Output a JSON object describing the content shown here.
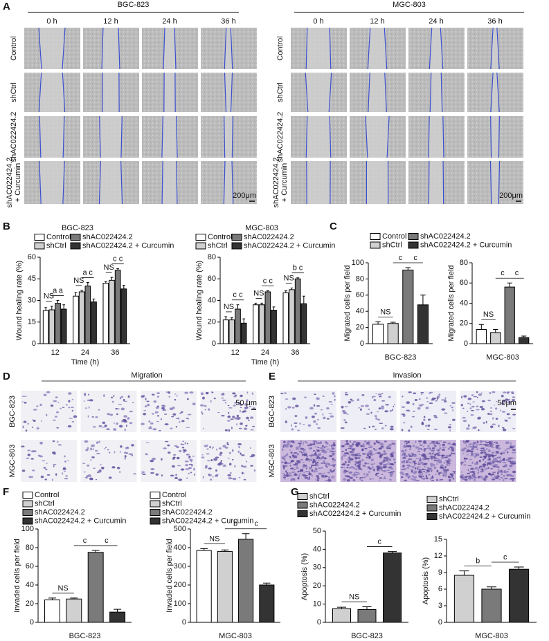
{
  "panel_labels": [
    "A",
    "B",
    "C",
    "D",
    "E",
    "F",
    "G"
  ],
  "wound_assay": {
    "groups": [
      "BGC-823",
      "MGC-803"
    ],
    "times": [
      "0 h",
      "12 h",
      "24 h",
      "36 h"
    ],
    "conditions": [
      [
        "Control"
      ],
      [
        "shCtrl"
      ],
      [
        "shAC022424.2"
      ],
      [
        "shAC022424.2",
        "+ Curcumin"
      ]
    ],
    "scale_bar": "200μm"
  },
  "transwell": {
    "titles": [
      "Migration",
      "Invasion"
    ],
    "cell_lines": [
      "BGC-823",
      "MGC-803"
    ],
    "scale_bars": [
      "50 μm",
      "50μm"
    ]
  },
  "chart_data": [
    {
      "type": "bar",
      "title": "BGC-823",
      "categories": [
        "12",
        "24",
        "36"
      ],
      "xlabel": "Time (h)",
      "ylabel": "Wound healing rate (%)",
      "ylim": [
        0,
        60
      ],
      "yticks": [
        0,
        15,
        30,
        45,
        60
      ],
      "legend_columns": 2,
      "series": [
        {
          "name": "Control",
          "color": "#ffffff",
          "values": [
            23,
            33,
            42
          ],
          "errors": [
            2,
            2.5,
            1
          ]
        },
        {
          "name": "shCtrl",
          "color": "#d0d0d0",
          "values": [
            23.5,
            36,
            44
          ],
          "errors": [
            2.5,
            1,
            2
          ]
        },
        {
          "name": "shAC022424.2",
          "color": "#7a7a7a",
          "values": [
            28,
            40,
            51
          ],
          "errors": [
            2,
            2.5,
            1
          ]
        },
        {
          "name": "shAC022424.2 + Curcumin",
          "color": "#333333",
          "values": [
            24,
            29,
            38
          ],
          "errors": [
            3,
            2,
            2.5
          ]
        }
      ],
      "annotations": [
        [
          "NS",
          "a",
          "a"
        ],
        [
          "NS",
          "a",
          "c"
        ],
        [
          "NS",
          "c",
          "c"
        ]
      ]
    },
    {
      "type": "bar",
      "title": "MGC-803",
      "categories": [
        "12",
        "24",
        "36"
      ],
      "xlabel": "Time (h)",
      "ylabel": "Wound healing rate (%)",
      "ylim": [
        0,
        80
      ],
      "yticks": [
        0,
        20,
        40,
        60,
        80
      ],
      "legend_columns": 2,
      "series": [
        {
          "name": "Control",
          "color": "#ffffff",
          "values": [
            22,
            36,
            47
          ],
          "errors": [
            3,
            1.5,
            2
          ]
        },
        {
          "name": "shCtrl",
          "color": "#d0d0d0",
          "values": [
            22,
            36,
            50
          ],
          "errors": [
            2,
            1.5,
            1.5
          ]
        },
        {
          "name": "shAC022424.2",
          "color": "#7a7a7a",
          "values": [
            32,
            48,
            60
          ],
          "errors": [
            4,
            1,
            1
          ]
        },
        {
          "name": "shAC022424.2 + Curcumin",
          "color": "#333333",
          "values": [
            19,
            31,
            37
          ],
          "errors": [
            4,
            3,
            7
          ]
        }
      ],
      "annotations": [
        [
          "NS",
          "c",
          "c"
        ],
        [
          "NS",
          "c",
          "c"
        ],
        [
          "NS",
          "b",
          "c"
        ]
      ]
    },
    {
      "type": "bar",
      "categories": [
        "BGC-823"
      ],
      "ylabel": "Migrated cells per field",
      "ylim": [
        0,
        100
      ],
      "yticks": [
        0,
        20,
        40,
        60,
        80,
        100
      ],
      "legend_columns": 2,
      "series": [
        {
          "name": "Control",
          "color": "#ffffff",
          "values": [
            24
          ],
          "errors": [
            3
          ]
        },
        {
          "name": "shCtrl",
          "color": "#d0d0d0",
          "values": [
            25
          ],
          "errors": [
            1.5
          ]
        },
        {
          "name": "shAC022424.2",
          "color": "#7a7a7a",
          "values": [
            91
          ],
          "errors": [
            3
          ]
        },
        {
          "name": "shAC022424.2 + Curcumin",
          "color": "#333333",
          "values": [
            48
          ],
          "errors": [
            12
          ]
        }
      ],
      "annotations": [
        [
          "NS",
          "c",
          "c"
        ]
      ]
    },
    {
      "type": "bar",
      "categories": [
        "MGC-803"
      ],
      "ylabel": "Migrated cells per field",
      "ylim": [
        0,
        80
      ],
      "yticks": [
        0,
        20,
        40,
        60,
        80
      ],
      "series": [
        {
          "color": "#ffffff",
          "values": [
            14
          ],
          "errors": [
            5
          ]
        },
        {
          "color": "#d0d0d0",
          "values": [
            11
          ],
          "errors": [
            3
          ]
        },
        {
          "color": "#7a7a7a",
          "values": [
            56
          ],
          "errors": [
            4
          ]
        },
        {
          "color": "#333333",
          "values": [
            6
          ],
          "errors": [
            1.5
          ]
        }
      ],
      "annotations": [
        [
          "NS",
          "c",
          "c"
        ]
      ]
    },
    {
      "type": "bar",
      "categories": [
        "BGC-823"
      ],
      "ylabel": "Invaded cells per field",
      "ylim": [
        0,
        100
      ],
      "yticks": [
        0,
        20,
        40,
        60,
        80,
        100
      ],
      "legend_columns": 1,
      "series": [
        {
          "name": "Control",
          "color": "#ffffff",
          "values": [
            24
          ],
          "errors": [
            2
          ]
        },
        {
          "name": "shCtrl",
          "color": "#d0d0d0",
          "values": [
            25
          ],
          "errors": [
            1
          ]
        },
        {
          "name": "shAC022424.2",
          "color": "#7a7a7a",
          "values": [
            75
          ],
          "errors": [
            2
          ]
        },
        {
          "name": "shAC022424.2 + Curcumin",
          "color": "#333333",
          "values": [
            11
          ],
          "errors": [
            3
          ]
        }
      ],
      "annotations": [
        [
          "NS",
          "c",
          "c"
        ]
      ]
    },
    {
      "type": "bar",
      "categories": [
        "MGC-803"
      ],
      "ylabel": "Invaded cells per field",
      "ylim": [
        0,
        500
      ],
      "yticks": [
        0,
        100,
        200,
        300,
        400,
        500
      ],
      "legend_columns": 1,
      "series": [
        {
          "name": "Control",
          "color": "#ffffff",
          "values": [
            385
          ],
          "errors": [
            10
          ]
        },
        {
          "name": "shCtrl",
          "color": "#d0d0d0",
          "values": [
            380
          ],
          "errors": [
            8
          ]
        },
        {
          "name": "shAC022424.2",
          "color": "#7a7a7a",
          "values": [
            445
          ],
          "errors": [
            30
          ]
        },
        {
          "name": "shAC022424.2 + Curcumin",
          "color": "#333333",
          "values": [
            200
          ],
          "errors": [
            10
          ]
        }
      ],
      "annotations": [
        [
          "NS",
          "b",
          "c"
        ]
      ]
    },
    {
      "type": "bar",
      "categories": [
        "BGC-823"
      ],
      "ylabel": "Apoptosis (%)",
      "ylim": [
        0,
        50
      ],
      "yticks": [
        0,
        10,
        20,
        30,
        40,
        50
      ],
      "legend_columns": 1,
      "series": [
        {
          "name": "shCtrl",
          "color": "#d0d0d0",
          "values": [
            7.5
          ],
          "errors": [
            0.8
          ]
        },
        {
          "name": "shAC022424.2",
          "color": "#7a7a7a",
          "values": [
            7
          ],
          "errors": [
            1.5
          ]
        },
        {
          "name": "shAC022424.2 + Curcumin",
          "color": "#333333",
          "values": [
            38
          ],
          "errors": [
            0.8
          ]
        }
      ],
      "annotations": [
        [
          "NS",
          "c"
        ]
      ]
    },
    {
      "type": "bar",
      "categories": [
        "MGC-803"
      ],
      "ylabel": "Apoptosis (%)",
      "ylim": [
        0,
        15
      ],
      "yticks": [
        0,
        3,
        6,
        9,
        12,
        15
      ],
      "legend_columns": 1,
      "series": [
        {
          "name": "shCtrl",
          "color": "#d0d0d0",
          "values": [
            8.5
          ],
          "errors": [
            0.8
          ]
        },
        {
          "name": "shAC022424.2",
          "color": "#7a7a7a",
          "values": [
            6
          ],
          "errors": [
            0.4
          ]
        },
        {
          "name": "shAC022424.2 + Curcumin",
          "color": "#333333",
          "values": [
            9.6
          ],
          "errors": [
            0.4
          ]
        }
      ],
      "annotations": [
        [
          "b",
          "c"
        ]
      ]
    }
  ]
}
